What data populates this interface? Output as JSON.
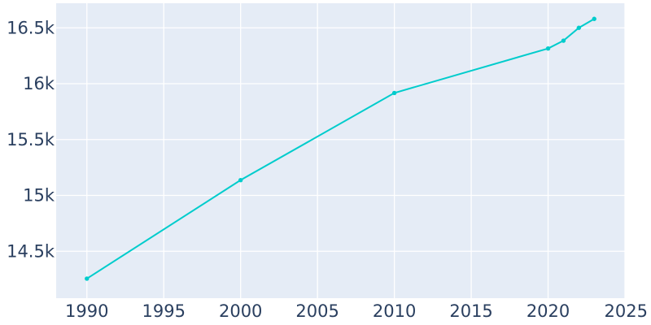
{
  "chart_data": {
    "type": "line",
    "title": "",
    "xlabel": "",
    "ylabel": "",
    "x": [
      1990,
      2000,
      2010,
      2020,
      2021,
      2022,
      2023
    ],
    "series": [
      {
        "values": [
          14255,
          15137,
          15917,
          16315,
          16385,
          16500,
          16580
        ]
      }
    ],
    "xlim": [
      1988,
      2025
    ],
    "ylim": [
      14080,
      16720
    ],
    "x_ticks": [
      1990,
      1995,
      2000,
      2005,
      2010,
      2015,
      2020,
      2025
    ],
    "x_tick_labels": [
      "1990",
      "1995",
      "2000",
      "2005",
      "2010",
      "2015",
      "2020",
      "2025"
    ],
    "y_ticks": [
      14500,
      15000,
      15500,
      16000,
      16500
    ],
    "y_tick_labels": [
      "14.5k",
      "15k",
      "15.5k",
      "16k",
      "16.5k"
    ],
    "grid": true,
    "legend": "none",
    "colors": {
      "plot_background": "#e5ecf6",
      "line": "#00cccc",
      "grid": "#ffffff",
      "tick_text": "#2a3f5f"
    }
  }
}
